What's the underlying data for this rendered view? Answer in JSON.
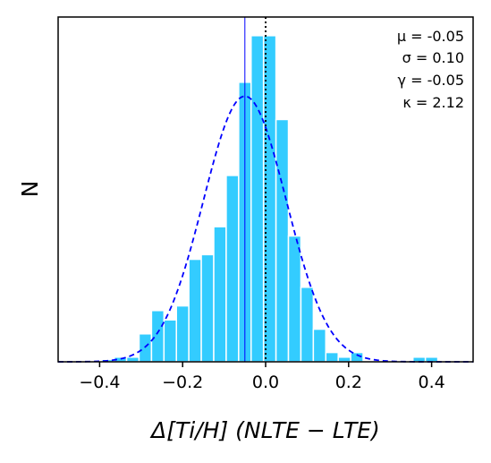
{
  "chart_data": {
    "type": "bar",
    "xlabel": "Δ[Ti/H] (NLTE − LTE)",
    "ylabel": "N",
    "xlim": [
      -0.5,
      0.5
    ],
    "ylim": [
      0,
      74
    ],
    "xticks": [
      "−0.4",
      "−0.2",
      "0.0",
      "0.2",
      "0.4"
    ],
    "xtick_values": [
      -0.4,
      -0.2,
      0.0,
      0.2,
      0.4
    ],
    "bin_width": 0.03,
    "bins_left": [
      -0.395,
      -0.365,
      -0.335,
      -0.305,
      -0.275,
      -0.245,
      -0.215,
      -0.185,
      -0.155,
      -0.125,
      -0.095,
      -0.065,
      -0.035,
      -0.005,
      0.025,
      0.055,
      0.085,
      0.115,
      0.145,
      0.175,
      0.205,
      0.235,
      0.265,
      0.295,
      0.325,
      0.355,
      0.385
    ],
    "counts": [
      0.5,
      1,
      1,
      6,
      11,
      9,
      12,
      22,
      23,
      29,
      40,
      60,
      70,
      70,
      52,
      27,
      16,
      7,
      2,
      1,
      2,
      0,
      0,
      0,
      0,
      1,
      1
    ],
    "bar_color": "#33ccff",
    "gaussian": {
      "mu": -0.05,
      "sigma": 0.1,
      "peak": 57,
      "color": "#0000ff",
      "style": "dashed"
    },
    "mean_line": {
      "x": -0.05,
      "color": "#0000ff"
    },
    "zero_line": {
      "x": 0.0,
      "color": "#000000",
      "style": "dotted"
    },
    "stats": [
      "μ = -0.05",
      "σ = 0.10",
      "γ = -0.05",
      "κ = 2.12"
    ],
    "grid": false,
    "legend": "none"
  }
}
